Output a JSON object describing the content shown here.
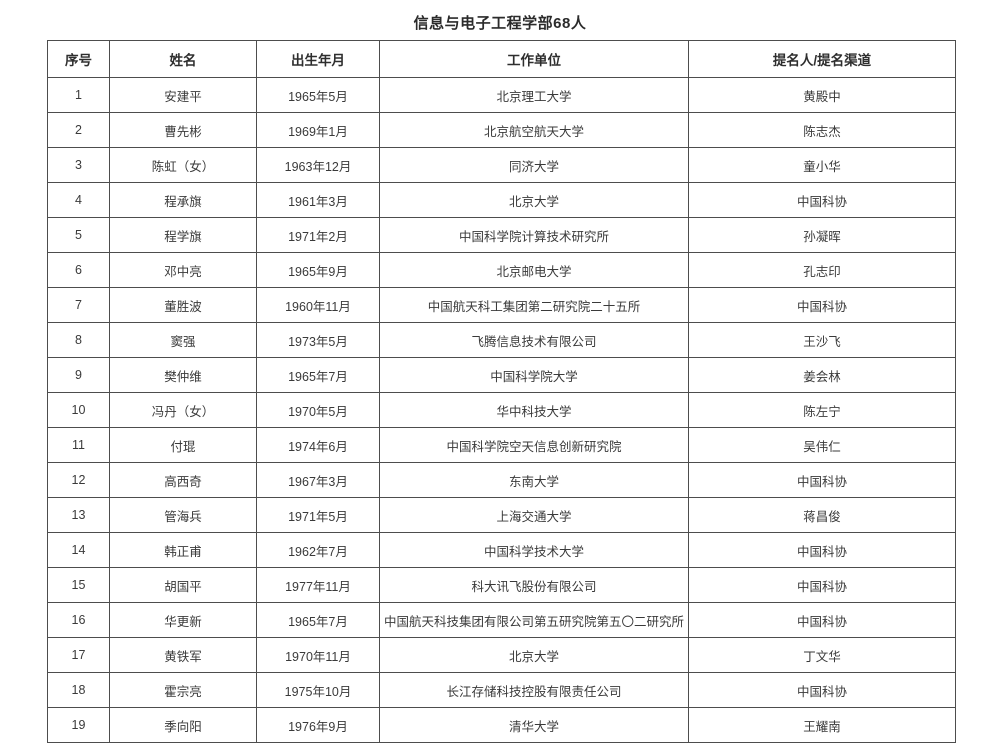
{
  "page": {
    "title": "信息与电子工程学部68人"
  },
  "table": {
    "headers": {
      "no": "序号",
      "name": "姓名",
      "birth": "出生年月",
      "org": "工作单位",
      "nominator": "提名人/提名渠道"
    },
    "rows": [
      {
        "no": "1",
        "name": "安建平",
        "birth": "1965年5月",
        "org": "北京理工大学",
        "nominator": "黄殿中"
      },
      {
        "no": "2",
        "name": "曹先彬",
        "birth": "1969年1月",
        "org": "北京航空航天大学",
        "nominator": "陈志杰"
      },
      {
        "no": "3",
        "name": "陈虹（女）",
        "birth": "1963年12月",
        "org": "同济大学",
        "nominator": "童小华"
      },
      {
        "no": "4",
        "name": "程承旗",
        "birth": "1961年3月",
        "org": "北京大学",
        "nominator": "中国科协"
      },
      {
        "no": "5",
        "name": "程学旗",
        "birth": "1971年2月",
        "org": "中国科学院计算技术研究所",
        "nominator": "孙凝晖"
      },
      {
        "no": "6",
        "name": "邓中亮",
        "birth": "1965年9月",
        "org": "北京邮电大学",
        "nominator": "孔志印"
      },
      {
        "no": "7",
        "name": "董胜波",
        "birth": "1960年11月",
        "org": "中国航天科工集团第二研究院二十五所",
        "nominator": "中国科协"
      },
      {
        "no": "8",
        "name": "窦强",
        "birth": "1973年5月",
        "org": "飞腾信息技术有限公司",
        "nominator": "王沙飞"
      },
      {
        "no": "9",
        "name": "樊仲维",
        "birth": "1965年7月",
        "org": "中国科学院大学",
        "nominator": "姜会林"
      },
      {
        "no": "10",
        "name": "冯丹（女）",
        "birth": "1970年5月",
        "org": "华中科技大学",
        "nominator": "陈左宁"
      },
      {
        "no": "11",
        "name": "付琨",
        "birth": "1974年6月",
        "org": "中国科学院空天信息创新研究院",
        "nominator": "吴伟仁"
      },
      {
        "no": "12",
        "name": "高西奇",
        "birth": "1967年3月",
        "org": "东南大学",
        "nominator": "中国科协"
      },
      {
        "no": "13",
        "name": "管海兵",
        "birth": "1971年5月",
        "org": "上海交通大学",
        "nominator": "蒋昌俊"
      },
      {
        "no": "14",
        "name": "韩正甫",
        "birth": "1962年7月",
        "org": "中国科学技术大学",
        "nominator": "中国科协"
      },
      {
        "no": "15",
        "name": "胡国平",
        "birth": "1977年11月",
        "org": "科大讯飞股份有限公司",
        "nominator": "中国科协"
      },
      {
        "no": "16",
        "name": "华更新",
        "birth": "1965年7月",
        "org": "中国航天科技集团有限公司第五研究院第五〇二研究所",
        "nominator": "中国科协"
      },
      {
        "no": "17",
        "name": "黄铁军",
        "birth": "1970年11月",
        "org": "北京大学",
        "nominator": "丁文华"
      },
      {
        "no": "18",
        "name": "霍宗亮",
        "birth": "1975年10月",
        "org": "长江存储科技控股有限责任公司",
        "nominator": "中国科协"
      },
      {
        "no": "19",
        "name": "季向阳",
        "birth": "1976年9月",
        "org": "清华大学",
        "nominator": "王耀南"
      }
    ],
    "colors": {
      "border": "#4d4d4d",
      "text": "#3a3a3a",
      "title_text": "#2b2b2b",
      "background": "#ffffff"
    }
  }
}
